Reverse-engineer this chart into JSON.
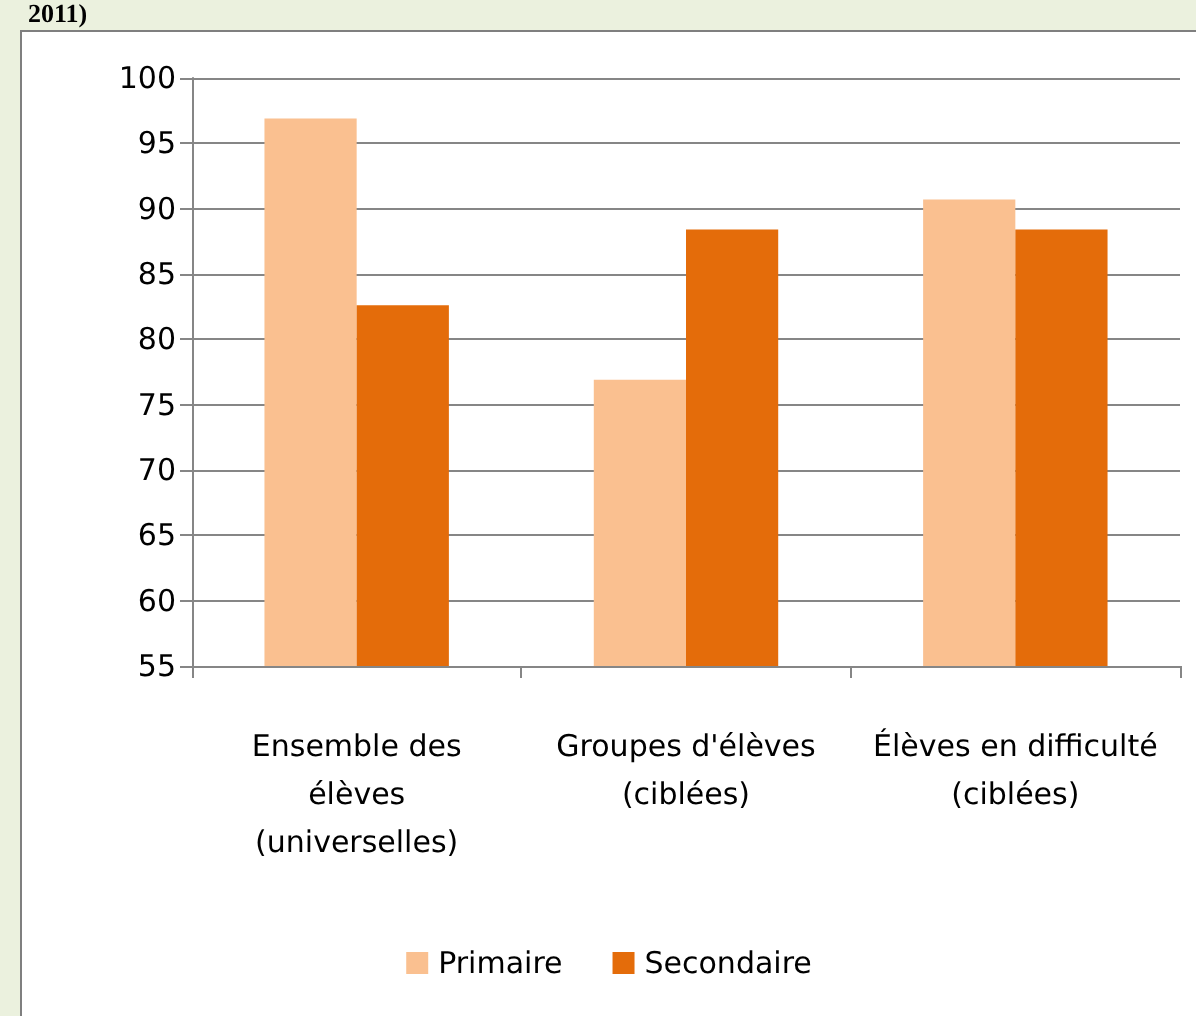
{
  "chart_data": {
    "type": "bar",
    "title": "2011)",
    "categories": [
      "Ensemble des\nélèves\n(universelles)",
      "Groupes d'élèves\n(ciblées)",
      "Élèves en difficulté\n(ciblées)"
    ],
    "series": [
      {
        "name": "Primaire",
        "color": "#fac090",
        "values": [
          96.9,
          76.9,
          90.7
        ]
      },
      {
        "name": "Secondaire",
        "color": "#e46c0a",
        "values": [
          82.6,
          88.4,
          88.4
        ]
      }
    ],
    "ylim": [
      55,
      100
    ],
    "yticks": [
      55,
      60,
      65,
      70,
      75,
      80,
      85,
      90,
      95,
      100
    ],
    "grid": "y",
    "legend": "bottom"
  }
}
